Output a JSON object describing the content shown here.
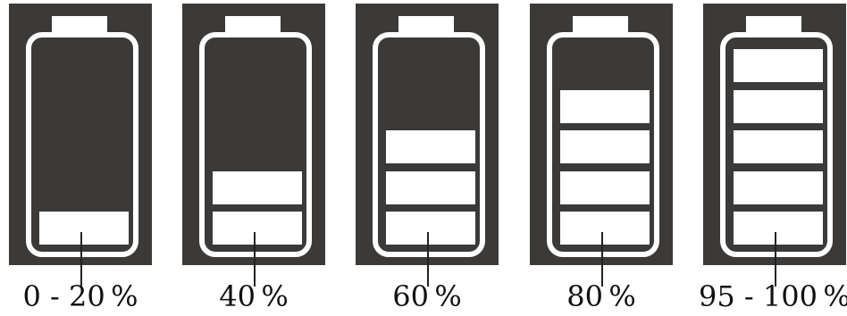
{
  "batteries": [
    {
      "label": "0 - 20 %",
      "filled_segments": 1
    },
    {
      "label": "40 %",
      "filled_segments": 2
    },
    {
      "label": "60 %",
      "filled_segments": 3
    },
    {
      "label": "80 %",
      "filled_segments": 4
    },
    {
      "label": "95 - 100 %",
      "filled_segments": 5
    }
  ],
  "colors": {
    "panel": "#3b3a39",
    "fill": "#ffffff",
    "text": "#111111"
  },
  "icon": "battery-icon"
}
